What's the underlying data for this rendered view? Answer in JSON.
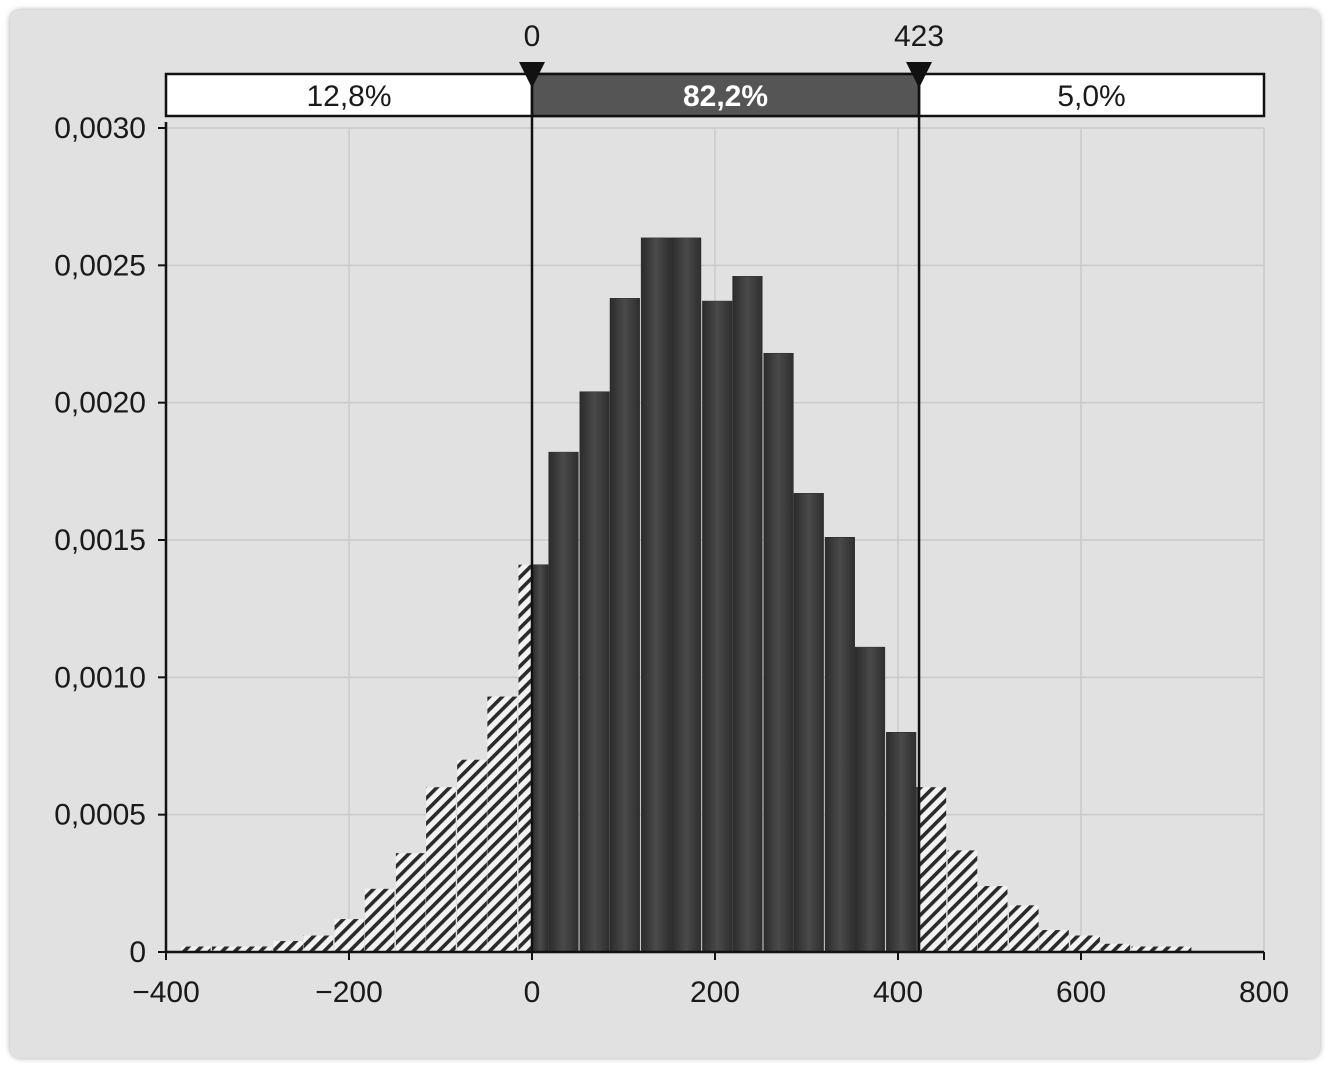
{
  "chart_data": {
    "type": "bar",
    "title": "",
    "xlabel": "",
    "ylabel": "",
    "xlim": [
      -400,
      800
    ],
    "ylim": [
      0,
      0.003
    ],
    "x_ticks": [
      "−400",
      "−200",
      "0",
      "200",
      "400",
      "600",
      "800"
    ],
    "y_ticks": [
      "0",
      "0,0005",
      "0,0010",
      "0,0015",
      "0,0020",
      "0,0025",
      "0,0030"
    ],
    "grid": true,
    "bin_width": 33.5,
    "bins": [
      {
        "x": -367,
        "y": 2e-05
      },
      {
        "x": -333,
        "y": 2e-05
      },
      {
        "x": -300,
        "y": 2e-05
      },
      {
        "x": -266,
        "y": 4e-05
      },
      {
        "x": -233,
        "y": 6e-05
      },
      {
        "x": -199,
        "y": 0.00012
      },
      {
        "x": -166,
        "y": 0.00023
      },
      {
        "x": -132,
        "y": 0.00036
      },
      {
        "x": -99,
        "y": 0.0006
      },
      {
        "x": -65,
        "y": 0.0007
      },
      {
        "x": -32,
        "y": 0.00093
      },
      {
        "x": 2,
        "y": 0.00141
      },
      {
        "x": 35,
        "y": 0.00182
      },
      {
        "x": 69,
        "y": 0.00204
      },
      {
        "x": 102,
        "y": 0.00238
      },
      {
        "x": 136,
        "y": 0.0026
      },
      {
        "x": 169,
        "y": 0.0026
      },
      {
        "x": 203,
        "y": 0.00237
      },
      {
        "x": 236,
        "y": 0.00246
      },
      {
        "x": 270,
        "y": 0.00218
      },
      {
        "x": 303,
        "y": 0.00167
      },
      {
        "x": 337,
        "y": 0.00151
      },
      {
        "x": 370,
        "y": 0.00111
      },
      {
        "x": 404,
        "y": 0.0008
      },
      {
        "x": 437,
        "y": 0.0006
      },
      {
        "x": 471,
        "y": 0.00037
      },
      {
        "x": 504,
        "y": 0.00024
      },
      {
        "x": 538,
        "y": 0.00017
      },
      {
        "x": 571,
        "y": 8e-05
      },
      {
        "x": 605,
        "y": 6e-05
      },
      {
        "x": 638,
        "y": 3e-05
      },
      {
        "x": 672,
        "y": 2e-05
      },
      {
        "x": 705,
        "y": 2e-05
      }
    ],
    "markers": {
      "lower": {
        "value": 0,
        "label": "0"
      },
      "upper": {
        "value": 423,
        "label": "423"
      }
    },
    "regions": {
      "left_pct": "12,8%",
      "middle_pct": "82,2%",
      "right_pct": "5,0%"
    },
    "colors": {
      "background": "#e1e1e1",
      "bar_dark": "#3a3a3a",
      "middle_band": "#555555",
      "hatch": "#2a2a2a"
    }
  }
}
